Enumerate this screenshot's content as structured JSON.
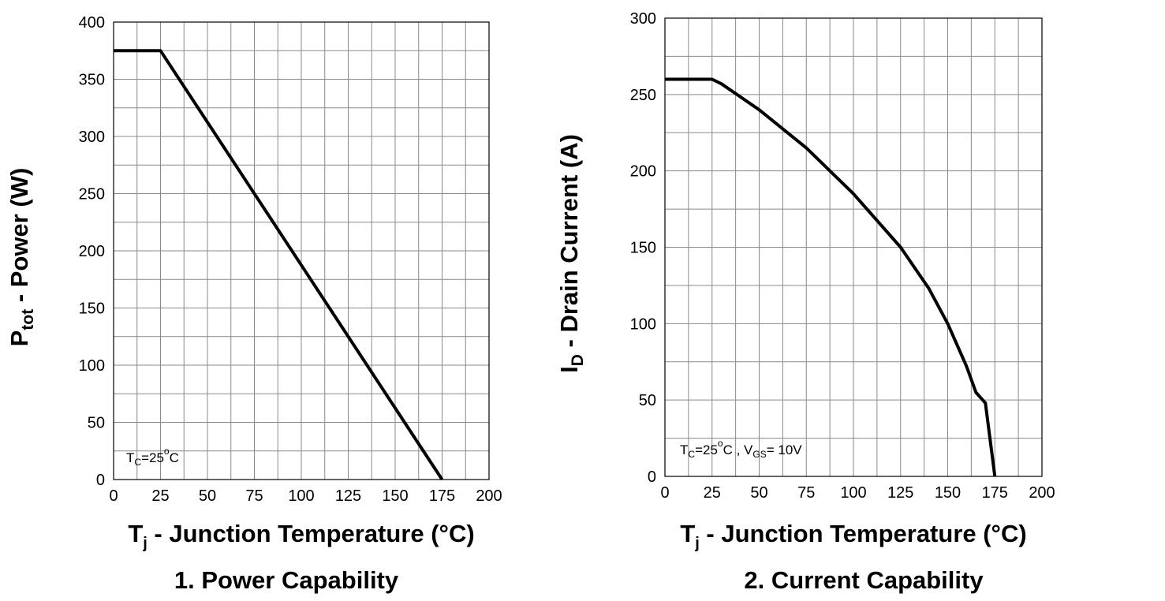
{
  "chart_data": [
    {
      "type": "line",
      "title_number": "1.",
      "title": "Power Capability",
      "xlabel": {
        "main": "T",
        "sub": "j",
        "rest": " - Junction Temperature (°C)"
      },
      "ylabel": {
        "main": "P",
        "sub": "tot",
        "rest": " - Power (W)"
      },
      "xlim": [
        0,
        200
      ],
      "ylim": [
        0,
        400
      ],
      "x_ticks": [
        0,
        25,
        50,
        75,
        100,
        125,
        150,
        175,
        200
      ],
      "y_ticks": [
        0,
        50,
        100,
        150,
        200,
        250,
        300,
        350,
        400
      ],
      "grid": true,
      "x_grid_step": 12.5,
      "y_grid_step": 25,
      "annotation": {
        "parts": [
          [
            "T",
            ""
          ],
          [
            "C",
            "sub"
          ],
          [
            "=25",
            ""
          ],
          [
            "o",
            "sup"
          ],
          [
            "C",
            ""
          ]
        ]
      },
      "series": [
        {
          "name": "Ptot",
          "x": [
            0,
            25,
            175
          ],
          "y": [
            375,
            375,
            0
          ]
        }
      ]
    },
    {
      "type": "line",
      "title_number": "2.",
      "title": "Current Capability",
      "xlabel": {
        "main": "T",
        "sub": "j",
        "rest": " - Junction Temperature (°C)"
      },
      "ylabel": {
        "main": "I",
        "sub": "D",
        "rest": " - Drain Current (A)"
      },
      "xlim": [
        0,
        200
      ],
      "ylim": [
        0,
        300
      ],
      "x_ticks": [
        0,
        25,
        50,
        75,
        100,
        125,
        150,
        175,
        200
      ],
      "y_ticks": [
        0,
        50,
        100,
        150,
        200,
        250,
        300
      ],
      "grid": true,
      "x_grid_step": 12.5,
      "y_grid_step": 25,
      "annotation": {
        "parts": [
          [
            "T",
            ""
          ],
          [
            "C",
            "sub"
          ],
          [
            "=25",
            ""
          ],
          [
            "o",
            "sup"
          ],
          [
            "C , V",
            ""
          ],
          [
            "GS",
            "sub"
          ],
          [
            "= 10V",
            ""
          ]
        ]
      },
      "series": [
        {
          "name": "ID",
          "x": [
            0,
            25,
            30,
            50,
            75,
            100,
            125,
            140,
            150,
            160,
            165,
            170,
            175
          ],
          "y": [
            260,
            260,
            257,
            240,
            215,
            185,
            150,
            123,
            100,
            72,
            55,
            48,
            0
          ]
        }
      ]
    }
  ]
}
